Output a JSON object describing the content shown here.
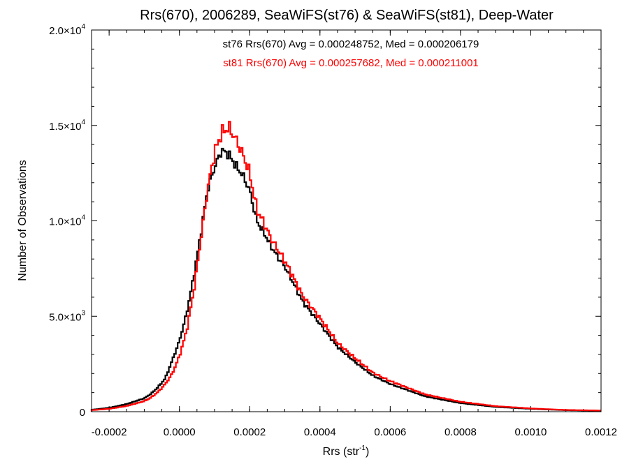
{
  "chart_data": {
    "type": "line",
    "subtype": "step-histogram",
    "title": "Rrs(670), 2006289, SeaWiFS(st76) & SeaWiFS(st81), Deep-Water",
    "xlabel": "Rrs (str",
    "xlabel_sup": "-1",
    "xlabel_suffix": ")",
    "ylabel": "Number of Observations",
    "xlim": [
      -0.00025,
      0.0012
    ],
    "ylim": [
      0,
      20000
    ],
    "xticks": [
      {
        "value": -0.0002,
        "label": "-0.0002"
      },
      {
        "value": 0.0,
        "label": "0.0000"
      },
      {
        "value": 0.0002,
        "label": "0.0002"
      },
      {
        "value": 0.0004,
        "label": "0.0004"
      },
      {
        "value": 0.0006,
        "label": "0.0006"
      },
      {
        "value": 0.0008,
        "label": "0.0008"
      },
      {
        "value": 0.001,
        "label": "0.0010"
      },
      {
        "value": 0.0012,
        "label": "0.0012"
      }
    ],
    "yticks": [
      {
        "value": 0,
        "mant": "0",
        "exp": ""
      },
      {
        "value": 5000,
        "mant": "5.0×10",
        "exp": "3"
      },
      {
        "value": 10000,
        "mant": "1.0×10",
        "exp": "4"
      },
      {
        "value": 15000,
        "mant": "1.5×10",
        "exp": "4"
      },
      {
        "value": 20000,
        "mant": "2.0×10",
        "exp": "4"
      }
    ],
    "annotations": [
      {
        "text": "st76 Rrs(670) Avg = 0.000248752, Med = 0.000206179",
        "color": "#000000"
      },
      {
        "text": "st81 Rrs(670) Avg = 0.000257682, Med = 0.000211001",
        "color": "#ff0000"
      }
    ],
    "series": [
      {
        "color": "#000000",
        "x": [
          -0.00025,
          -0.0002,
          -0.00015,
          -0.0001,
          -8e-05,
          -6e-05,
          -4e-05,
          -2e-05,
          0.0,
          2e-05,
          4e-05,
          6e-05,
          8e-05,
          0.0001,
          0.00012,
          0.00014,
          0.00016,
          0.00018,
          0.0002,
          0.00022,
          0.00024,
          0.00026,
          0.00028,
          0.0003,
          0.00032,
          0.00035,
          0.0004,
          0.00045,
          0.0005,
          0.00055,
          0.0006,
          0.0007,
          0.0008,
          0.0009,
          0.001,
          0.0011,
          0.0012
        ],
        "y": [
          100,
          200,
          400,
          700,
          950,
          1300,
          1750,
          2700,
          3700,
          5100,
          7000,
          9200,
          11600,
          12800,
          13700,
          13500,
          12900,
          12400,
          11600,
          10000,
          9400,
          8700,
          8100,
          7600,
          6900,
          5800,
          4600,
          3400,
          2600,
          1900,
          1450,
          800,
          450,
          250,
          150,
          80,
          50
        ]
      },
      {
        "color": "#ff0000",
        "x": [
          -0.00025,
          -0.0002,
          -0.00015,
          -0.0001,
          -8e-05,
          -6e-05,
          -4e-05,
          -2e-05,
          0.0,
          2e-05,
          4e-05,
          6e-05,
          8e-05,
          0.0001,
          0.00012,
          0.00014,
          0.00016,
          0.00018,
          0.0002,
          0.00022,
          0.00024,
          0.00026,
          0.00028,
          0.0003,
          0.00032,
          0.00035,
          0.0004,
          0.00045,
          0.0005,
          0.00055,
          0.0006,
          0.0007,
          0.0008,
          0.0009,
          0.001,
          0.0011,
          0.0012
        ],
        "y": [
          80,
          150,
          300,
          550,
          750,
          1050,
          1450,
          2000,
          2900,
          4200,
          6200,
          8900,
          11600,
          13600,
          14600,
          14900,
          14300,
          13500,
          12500,
          10600,
          9900,
          9100,
          8500,
          7900,
          7200,
          6100,
          4900,
          3600,
          2800,
          2050,
          1600,
          900,
          520,
          290,
          170,
          90,
          60
        ]
      }
    ]
  }
}
